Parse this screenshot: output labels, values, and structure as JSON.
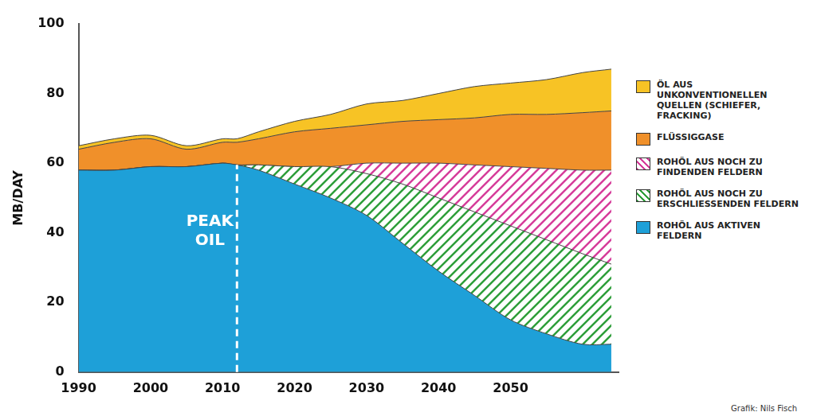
{
  "chart_data": {
    "type": "area",
    "stacked": true,
    "grid": false,
    "legend": "right",
    "y_label": "MB/DAY",
    "x": [
      1990,
      1995,
      2000,
      2005,
      2010,
      2012,
      2015,
      2020,
      2025,
      2030,
      2035,
      2040,
      2045,
      2050,
      2055,
      2060,
      2064
    ],
    "xlim": [
      1990,
      2065
    ],
    "xticks": [
      1990,
      2000,
      2010,
      2020,
      2030,
      2040,
      2050
    ],
    "ylim": [
      0,
      100
    ],
    "yticks": [
      0,
      20,
      40,
      60,
      80,
      100
    ],
    "series": [
      {
        "name": "ROHÖL AUS AKTIVEN FELDERN",
        "color": "#1ea0d8",
        "values": [
          58,
          58,
          59,
          59,
          60,
          59.5,
          58,
          54,
          50,
          45,
          37,
          29,
          22,
          15,
          11,
          8,
          8
        ]
      },
      {
        "name": "ROHÖL AUS NOCH ZU ERSCHLIESSENDEN FELDERN",
        "color": "#2e9e3a",
        "values": [
          0,
          0,
          0,
          0,
          0,
          0,
          1.5,
          5,
          9,
          12,
          17,
          21,
          24,
          27,
          27,
          26,
          23
        ]
      },
      {
        "name": "ROHÖL AUS NOCH ZU FINDENDEN FELDERN",
        "color": "#d63c9a",
        "values": [
          0,
          0,
          0,
          0,
          0,
          0,
          0,
          0,
          0,
          3,
          6,
          10,
          13.5,
          17,
          20.5,
          24,
          27
        ]
      },
      {
        "name": "FLÜSSIGGASE",
        "color": "#f0902a",
        "values": [
          6,
          8,
          8,
          5,
          6,
          6.5,
          7.5,
          10,
          11,
          11,
          12,
          12.5,
          13.5,
          15,
          15.5,
          16.5,
          17
        ]
      },
      {
        "name": "ÖL AUS UNKONVENTIONELLEN QUELLEN (SCHIEFER, FRACKING)",
        "color": "#f7c325",
        "values": [
          1,
          1,
          1,
          1,
          1,
          1,
          2,
          3,
          4,
          6,
          6,
          7.5,
          9,
          9,
          10,
          11.5,
          12
        ]
      }
    ],
    "annotations": [
      {
        "text": "PEAK OIL",
        "x": 2012,
        "line_style": "dashed"
      }
    ],
    "source": "Grafik: Nils Fisch"
  }
}
